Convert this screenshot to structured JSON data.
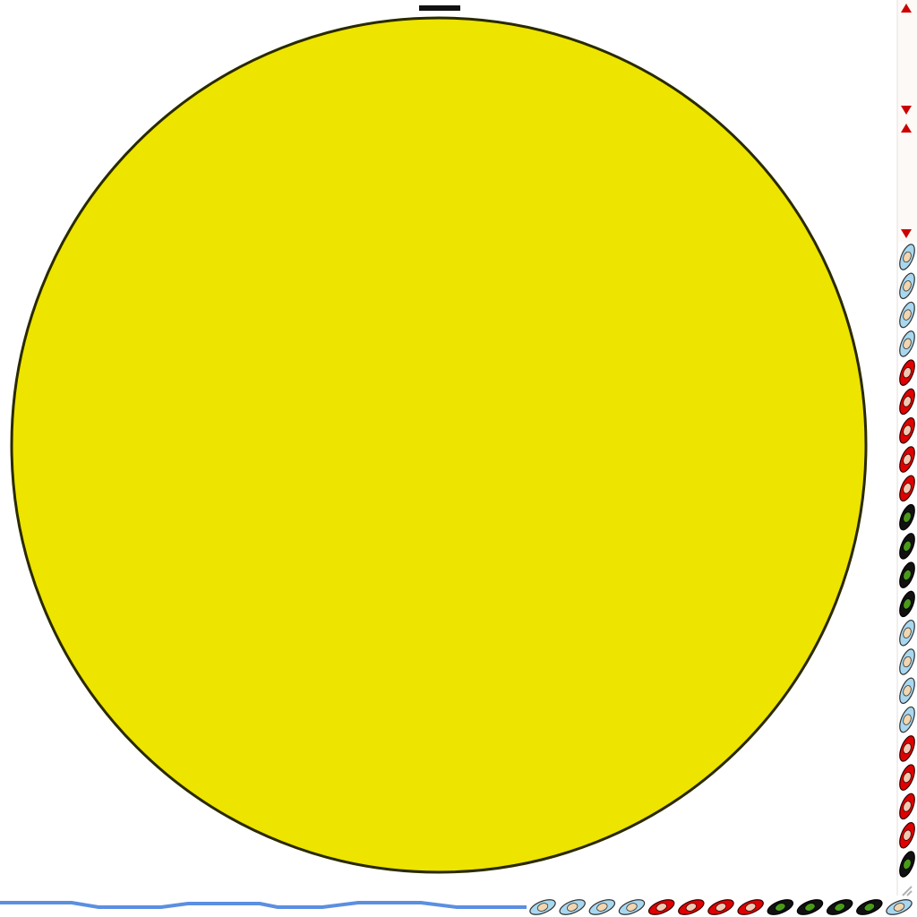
{
  "scene": {
    "background_color": "#ffffff",
    "main_disc": {
      "icon": "yellow-circle-icon",
      "fill_color": "#ede400",
      "outline_color": "#2a2a00"
    },
    "right_strip": {
      "top_markers": {
        "icon": "red-triangle-marker-icon",
        "color": "#cc0000",
        "count": 4
      },
      "seeds": [
        "sky",
        "sky",
        "sky",
        "sky",
        "red",
        "red",
        "red",
        "red",
        "red",
        "green",
        "green",
        "green",
        "green",
        "sky",
        "sky",
        "sky",
        "sky",
        "red",
        "red",
        "red",
        "red",
        "green"
      ]
    },
    "bottom_strip": {
      "wave_line": {
        "icon": "blue-wave-line-icon",
        "color": "#5b8fe0"
      },
      "seeds": [
        "sky",
        "sky",
        "sky",
        "sky",
        "red",
        "red",
        "red",
        "red",
        "green",
        "green",
        "green",
        "green",
        "sky"
      ]
    },
    "seed_palette": {
      "sky": {
        "outer": "#a8d8f0",
        "inner": "#f2d6b0",
        "outline": "#333333"
      },
      "red": {
        "outer": "#e00000",
        "inner": "#f2c8b0",
        "outline": "#330000"
      },
      "green": {
        "outer": "#111111",
        "inner": "#4a9a1a",
        "outline": "#000000"
      }
    },
    "corner_icon": "resize-grip-icon"
  }
}
